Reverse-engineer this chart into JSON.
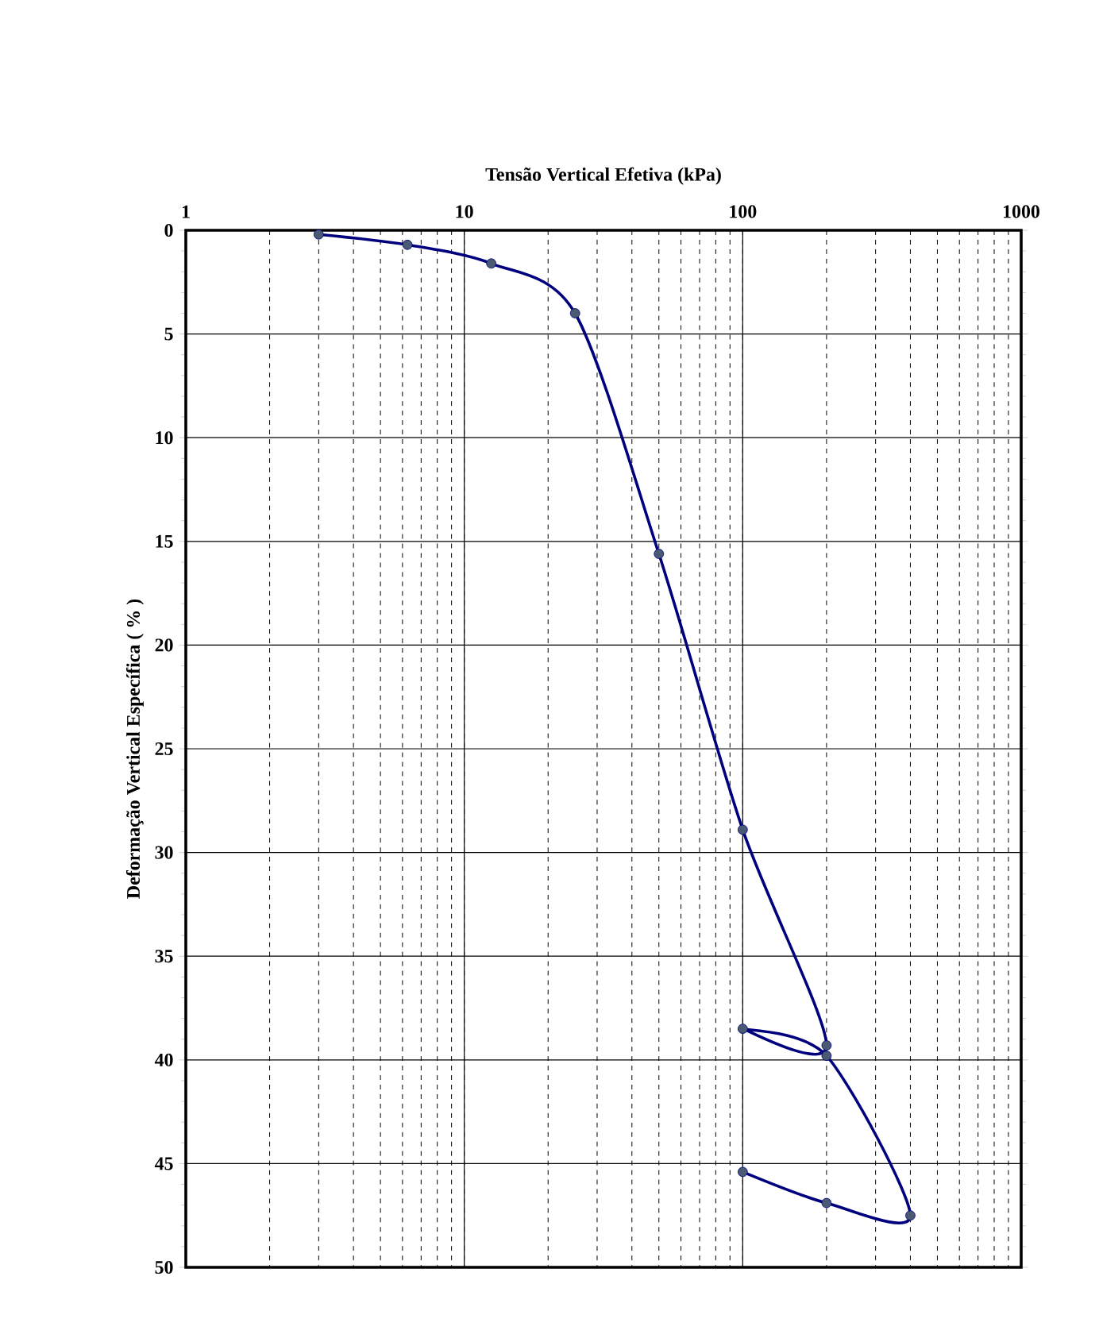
{
  "chart_data": {
    "type": "line",
    "xlabel": "Tensão Vertical Efetiva (kPa)",
    "ylabel": "Deformação Vertical Específica  ( % )",
    "x": [
      3,
      6.25,
      12.5,
      25,
      50,
      100,
      200,
      100,
      200,
      400,
      200,
      100
    ],
    "values": [
      0.2,
      0.7,
      1.6,
      4,
      15.6,
      28.9,
      39.3,
      38.5,
      39.8,
      47.5,
      46.9,
      45.4
    ],
    "color": "#00007f",
    "xlim": [
      1,
      1000
    ],
    "ylim": [
      50,
      0
    ],
    "xticks": [
      1,
      10,
      100,
      1000
    ],
    "yticks": [
      0,
      5,
      10,
      15,
      20,
      25,
      30,
      35,
      40,
      45,
      50
    ],
    "log": "x",
    "grid": true,
    "marker": "circle",
    "line_style": "solid"
  }
}
